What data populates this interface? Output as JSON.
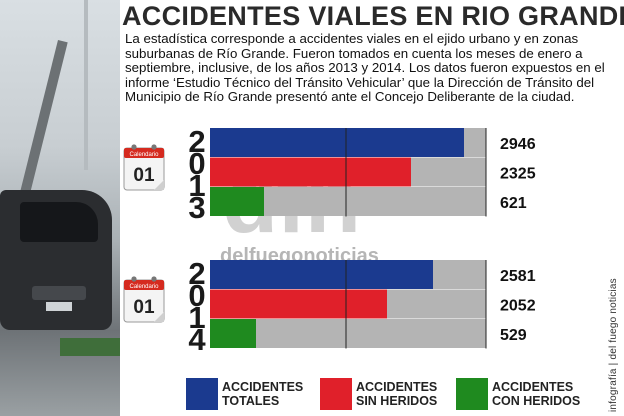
{
  "title": "ACCIDENTES VIALES EN RIO GRANDE",
  "intro": "La estadística corresponde a accidentes viales en el ejido urbano y en zonas suburbanas de Río Grande. Fueron tomados en cuenta los meses de enero a septiembre, inclusive, de los años 2013 y 2014. Los datos fueron expuestos en el informe ‘Estudio Técnico del Tránsito Vehicular’ que la Dirección de Tránsito del Municipio de Río Grande presentó ante el Concejo Deliberante de la ciudad.",
  "watermark": {
    "logo": "dfn",
    "text": "delfuegonoticias"
  },
  "calendar": {
    "header": "Calendario",
    "day": "01"
  },
  "side_credit": "infografía | del fuego noticias",
  "legend": [
    {
      "label": "ACCIDENTES TOTALES",
      "line1": "ACCIDENTES",
      "line2": "TOTALES",
      "color": "#1b3a8f"
    },
    {
      "label": "ACCIDENTES SIN HERIDOS",
      "line1": "ACCIDENTES",
      "line2": "SIN HERIDOS",
      "color": "#e0202a"
    },
    {
      "label": "ACCIDENTES CON HERIDOS",
      "line1": "ACCIDENTES",
      "line2": "CON HERIDOS",
      "color": "#1f8a1f"
    }
  ],
  "colors": {
    "totales": "#1b3a8f",
    "sin_heridos": "#e0202a",
    "con_heridos": "#1f8a1f",
    "track": "#b4b4b4"
  },
  "chart_data": {
    "type": "bar",
    "orientation": "horizontal",
    "title": "ACCIDENTES VIALES EN RIO GRANDE",
    "xlim": [
      0,
      3200
    ],
    "groups": [
      {
        "year": "2013",
        "digits": [
          "2",
          "0",
          "1",
          "3"
        ],
        "bars": [
          {
            "series": "ACCIDENTES TOTALES",
            "value": 2946,
            "label": "2946"
          },
          {
            "series": "ACCIDENTES SIN HERIDOS",
            "value": 2325,
            "label": "2325"
          },
          {
            "series": "ACCIDENTES CON HERIDOS",
            "value": 621,
            "label": "621"
          }
        ]
      },
      {
        "year": "2014",
        "digits": [
          "2",
          "0",
          "1",
          "4"
        ],
        "bars": [
          {
            "series": "ACCIDENTES TOTALES",
            "value": 2581,
            "label": "2581"
          },
          {
            "series": "ACCIDENTES SIN HERIDOS",
            "value": 2052,
            "label": "2052"
          },
          {
            "series": "ACCIDENTES CON HERIDOS",
            "value": 529,
            "label": "529"
          }
        ]
      }
    ]
  }
}
